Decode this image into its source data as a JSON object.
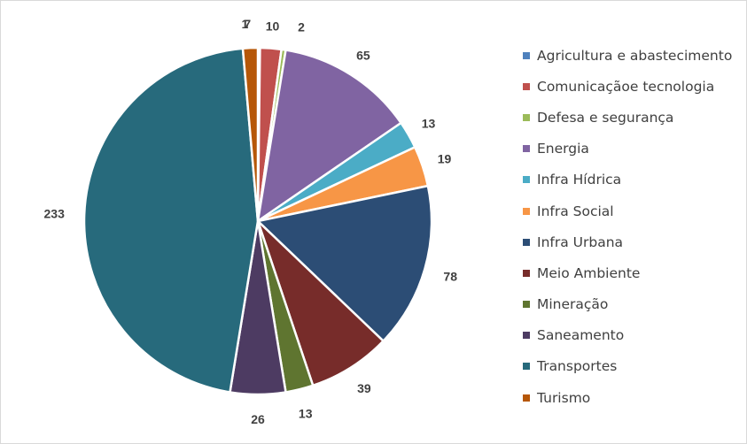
{
  "chart_data": {
    "type": "pie",
    "title": "",
    "legend_position": "right",
    "categories": [
      "Agricultura e abastecimento",
      "Comunicaçãoe tecnologia",
      "Defesa e segurança",
      "Energia",
      "Infra Hídrica",
      "Infra Social",
      "Infra Urbana",
      "Meio Ambiente",
      "Mineração",
      "Saneamento",
      "Transportes",
      "Turismo"
    ],
    "values": [
      1,
      10,
      2,
      65,
      13,
      19,
      78,
      39,
      13,
      26,
      233,
      7
    ],
    "labels": [
      "1",
      "10",
      "2",
      "65",
      "13",
      "19",
      "78",
      "39",
      "13",
      "26",
      "233",
      "7"
    ],
    "colors": [
      "#4f81bd",
      "#c0504d",
      "#9bbb59",
      "#8064a2",
      "#4bacc6",
      "#f79646",
      "#2c4d75",
      "#772c2a",
      "#5f7530",
      "#4d3b62",
      "#276a7c",
      "#b65708"
    ]
  }
}
